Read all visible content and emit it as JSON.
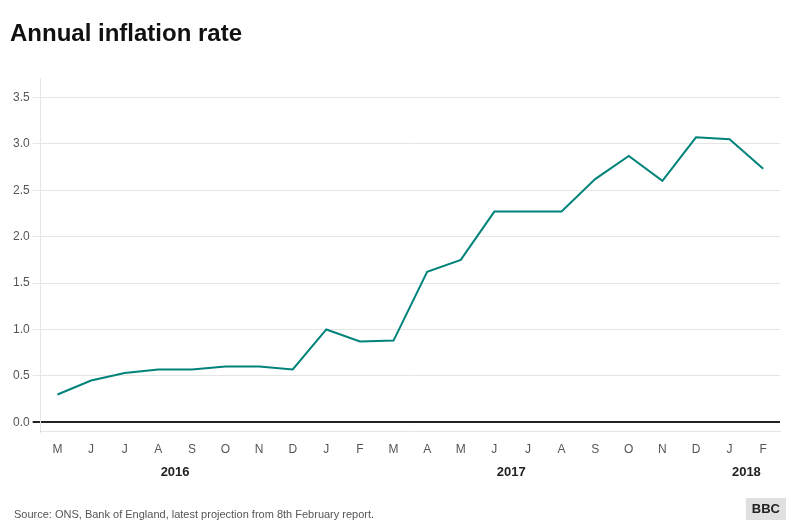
{
  "chart_data": {
    "type": "line",
    "title": "Annual inflation rate",
    "categories": [
      "M",
      "J",
      "J",
      "A",
      "S",
      "O",
      "N",
      "D",
      "J",
      "F",
      "M",
      "A",
      "M",
      "J",
      "J",
      "A",
      "S",
      "O",
      "N",
      "D",
      "J",
      "F"
    ],
    "values": [
      0.3,
      0.45,
      0.53,
      0.57,
      0.57,
      0.6,
      0.6,
      0.57,
      1.0,
      0.87,
      0.88,
      1.62,
      1.75,
      2.27,
      2.27,
      2.27,
      2.62,
      2.87,
      2.6,
      3.07,
      3.05,
      2.73
    ],
    "color": "#00837A",
    "ylim": [
      -0.1,
      3.7
    ],
    "yticks": [
      {
        "value": 0,
        "label": "0.0"
      },
      0.5,
      {
        "value": 1,
        "label": "1.0"
      },
      1.5,
      {
        "value": 2,
        "label": "2.0"
      },
      2.5,
      {
        "value": 3,
        "label": "3.0"
      },
      3.5
    ],
    "grid": true,
    "annotations": [
      {
        "text": "2016",
        "x": 3.5
      },
      {
        "text": "2017",
        "x": 13.5
      },
      {
        "text": "2018",
        "x": 20.5
      }
    ],
    "source": "Source: ONS, Bank of England, latest projection from 8th February report.",
    "credit": "BBC"
  }
}
